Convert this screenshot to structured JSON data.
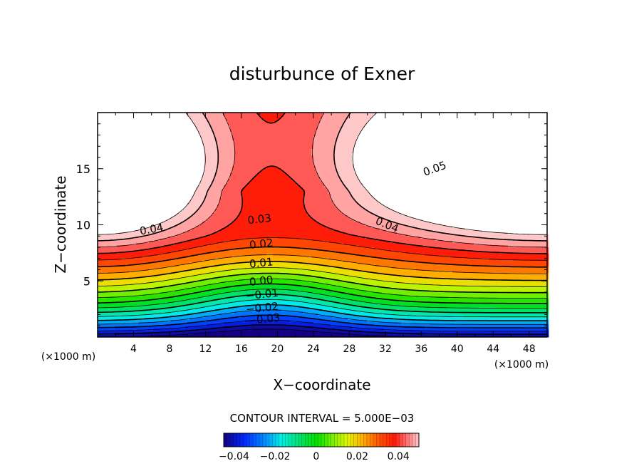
{
  "chart_data": {
    "type": "contour",
    "title": "disturbunce of Exner",
    "xlabel": "X−coordinate",
    "ylabel": "Z−coordinate",
    "x_unit_left": "(×1000 m)",
    "x_unit_right": "(×1000 m)",
    "xlim": [
      0,
      50
    ],
    "ylim": [
      0,
      20
    ],
    "x_ticks": [
      4,
      8,
      12,
      16,
      20,
      24,
      28,
      32,
      36,
      40,
      44,
      48
    ],
    "y_ticks": [
      5,
      10,
      15
    ],
    "contour_interval_text": "CONTOUR INTERVAL = 5.000E−03",
    "contour_interval": 0.005,
    "field_range": [
      -0.045,
      0.055
    ],
    "contour_labels": [
      {
        "text": "0.05",
        "x": 37.5,
        "z": 15.0
      },
      {
        "text": "0.04",
        "x": 6.0,
        "z": 9.6
      },
      {
        "text": "0.04",
        "x": 32.2,
        "z": 10.0
      },
      {
        "text": "0.03",
        "x": 18.0,
        "z": 10.5
      },
      {
        "text": "0.02",
        "x": 18.2,
        "z": 8.3
      },
      {
        "text": "0.01",
        "x": 18.2,
        "z": 6.6
      },
      {
        "text": "0.00",
        "x": 18.2,
        "z": 5.0
      },
      {
        "text": "−0.01",
        "x": 18.3,
        "z": 3.8
      },
      {
        "text": "−0.02",
        "x": 18.3,
        "z": 2.6
      },
      {
        "text": "−0.03",
        "x": 18.5,
        "z": 1.6
      }
    ],
    "colorbar": {
      "tick_labels": [
        "−0.04",
        "−0.02",
        "0",
        "0.02",
        "0.04"
      ],
      "tick_values": [
        -0.04,
        -0.02,
        0,
        0.02,
        0.04
      ]
    },
    "colors": {
      "low": "#0000b4",
      "mid": "#00e000",
      "high": "#ff2200",
      "top": "#ffffff"
    }
  }
}
